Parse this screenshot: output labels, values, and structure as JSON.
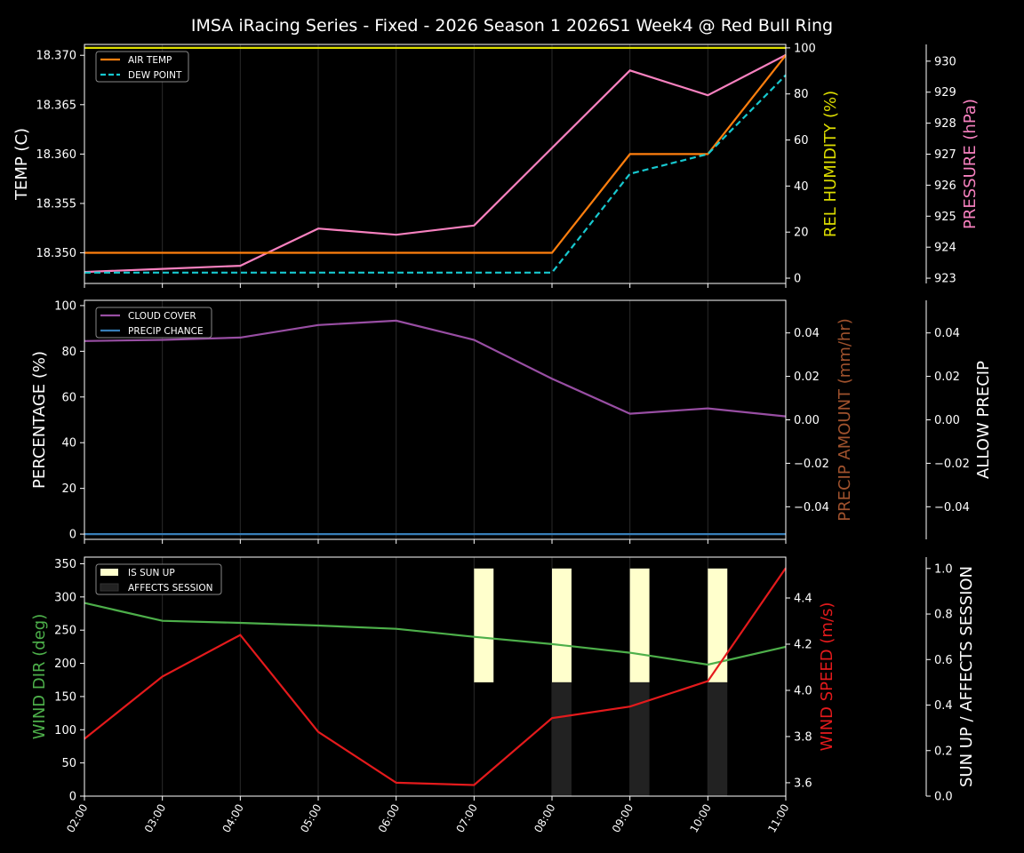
{
  "chart_data": {
    "type": "line",
    "title": "IMSA iRacing Series - Fixed - 2026 Season 1 2026S1 Week4 @ Red Bull Ring",
    "x": [
      "02:00",
      "03:00",
      "04:00",
      "05:00",
      "06:00",
      "07:00",
      "08:00",
      "09:00",
      "10:00",
      "11:00"
    ],
    "grid": "vertical",
    "panels": [
      {
        "axes": [
          {
            "id": "temp",
            "position": "left",
            "label": "TEMP (C)",
            "label_color": "#ffffff",
            "ylim": [
              18.3469,
              18.3711
            ],
            "ticks": [
              18.35,
              18.355,
              18.36,
              18.365,
              18.37
            ],
            "tick_labels": [
              "18.350",
              "18.355",
              "18.360",
              "18.365",
              "18.370"
            ]
          },
          {
            "id": "hum",
            "position": "right",
            "label": "REL HUMIDITY (%)",
            "label_color": "#dddd00",
            "ylim": [
              -2.3,
              101.5
            ],
            "ticks": [
              0,
              20,
              40,
              60,
              80,
              100
            ],
            "tick_labels": [
              "0",
              "20",
              "40",
              "60",
              "80",
              "100"
            ]
          },
          {
            "id": "pres",
            "position": "far-right",
            "label": "PRESSURE (hPa)",
            "label_color": "#f781bf",
            "ylim": [
              922.83,
              930.54
            ],
            "ticks": [
              923,
              924,
              925,
              926,
              927,
              928,
              929,
              930
            ],
            "tick_labels": [
              "923",
              "924",
              "925",
              "926",
              "927",
              "928",
              "929",
              "930"
            ]
          }
        ],
        "series": [
          {
            "name": "REL HUMIDITY",
            "axis": "hum",
            "color": "#dddd00",
            "style": "solid",
            "values": [
              100,
              100,
              100,
              100,
              100,
              100,
              100,
              100,
              100,
              100
            ]
          },
          {
            "name": "PRESSURE",
            "axis": "pres",
            "color": "#f781bf",
            "style": "solid",
            "values": [
              923.2,
              923.3,
              923.4,
              924.6,
              924.4,
              924.7,
              927.2,
              929.7,
              928.9,
              930.2
            ]
          },
          {
            "name": "AIR TEMP",
            "axis": "temp",
            "color": "#ff7f0e",
            "style": "solid",
            "values": [
              18.35,
              18.35,
              18.35,
              18.35,
              18.35,
              18.35,
              18.35,
              18.36,
              18.36,
              18.37
            ]
          },
          {
            "name": "DEW POINT",
            "axis": "temp",
            "color": "#17c8cf",
            "style": "dashed",
            "values": [
              18.348,
              18.348,
              18.348,
              18.348,
              18.348,
              18.348,
              18.348,
              18.358,
              18.36,
              18.368
            ]
          }
        ],
        "legend": {
          "placement": "top-left",
          "entries": [
            {
              "label": "AIR TEMP",
              "color": "#ff7f0e",
              "style": "solid"
            },
            {
              "label": "DEW POINT",
              "color": "#17c8cf",
              "style": "dashed"
            }
          ]
        }
      },
      {
        "axes": [
          {
            "id": "pct",
            "position": "left",
            "label": "PERCENTAGE (%)",
            "label_color": "#ffffff",
            "ylim": [
              -2.3,
              102.3
            ],
            "ticks": [
              0,
              20,
              40,
              60,
              80,
              100
            ],
            "tick_labels": [
              "0",
              "20",
              "40",
              "60",
              "80",
              "100"
            ]
          },
          {
            "id": "pamt",
            "position": "right",
            "label": "PRECIP AMOUNT (mm/hr)",
            "label_color": "#a0522d",
            "ylim": [
              -0.055,
              0.055
            ],
            "ticks": [
              -0.04,
              -0.02,
              0,
              0.02,
              0.04
            ],
            "tick_labels": [
              "−0.04",
              "−0.02",
              "0.00",
              "0.02",
              "0.04"
            ]
          },
          {
            "id": "allow",
            "position": "far-right",
            "label": "ALLOW PRECIP",
            "label_color": "#ffffff",
            "ylim": [
              -0.055,
              0.055
            ],
            "ticks": [
              -0.04,
              -0.02,
              0,
              0.02,
              0.04
            ],
            "tick_labels": [
              "−0.04",
              "−0.02",
              "0.00",
              "0.02",
              "0.04"
            ]
          }
        ],
        "series": [
          {
            "name": "CLOUD COVER",
            "axis": "pct",
            "color": "#984ea3",
            "style": "solid",
            "values": [
              84.5,
              85,
              86,
              91.5,
              93.4,
              85,
              68,
              52.7,
              55,
              51.5
            ]
          },
          {
            "name": "PRECIP CHANCE",
            "axis": "pct",
            "color": "#377eb8",
            "style": "solid",
            "values": [
              0,
              0,
              0,
              0,
              0,
              0,
              0,
              0,
              0,
              0
            ]
          }
        ],
        "legend": {
          "placement": "top-left",
          "entries": [
            {
              "label": "CLOUD COVER",
              "color": "#984ea3",
              "style": "solid"
            },
            {
              "label": "PRECIP CHANCE",
              "color": "#377eb8",
              "style": "solid"
            }
          ]
        }
      },
      {
        "axes": [
          {
            "id": "wdir",
            "position": "left",
            "label": "WIND DIR (deg)",
            "label_color": "#4daf4a",
            "ylim": [
              0,
              360
            ],
            "ticks": [
              0,
              50,
              100,
              150,
              200,
              250,
              300,
              350
            ],
            "tick_labels": [
              "0",
              "50",
              "100",
              "150",
              "200",
              "250",
              "300",
              "350"
            ]
          },
          {
            "id": "wspd",
            "position": "right",
            "label": "WIND SPEED (m/s)",
            "label_color": "#e41a1c",
            "ylim": [
              3.542,
              4.577
            ],
            "ticks": [
              3.6,
              3.8,
              4.0,
              4.2,
              4.4
            ],
            "tick_labels": [
              "3.6",
              "3.8",
              "4.0",
              "4.2",
              "4.4"
            ]
          },
          {
            "id": "sun",
            "position": "far-right",
            "label": "SUN UP / AFFECTS SESSION",
            "label_color": "#ffffff",
            "ylim": [
              0,
              1.05
            ],
            "ticks": [
              0,
              0.2,
              0.4,
              0.6,
              0.8,
              1.0
            ],
            "tick_labels": [
              "0.0",
              "0.2",
              "0.4",
              "0.6",
              "0.8",
              "1.0"
            ]
          }
        ],
        "bars": [
          {
            "name": "IS SUN UP",
            "axis": "sun",
            "color": "#ffffcc",
            "base": 0.5,
            "height": 0.5,
            "values": [
              0,
              0,
              0,
              0,
              0,
              1,
              1,
              1,
              1,
              0
            ]
          },
          {
            "name": "AFFECTS SESSION",
            "axis": "sun",
            "color": "#222222",
            "base": 0,
            "height": 0.5,
            "values": [
              0,
              0,
              0,
              0,
              0,
              0,
              1,
              1,
              1,
              0
            ]
          }
        ],
        "series": [
          {
            "name": "WIND DIR",
            "axis": "wdir",
            "color": "#4daf4a",
            "style": "solid",
            "values": [
              291,
              264,
              261,
              257,
              252,
              240,
              229,
              216,
              198,
              225
            ]
          },
          {
            "name": "WIND SPEED",
            "axis": "wspd",
            "color": "#e41a1c",
            "style": "solid",
            "values": [
              3.79,
              4.06,
              4.24,
              3.82,
              3.6,
              3.59,
              3.88,
              3.93,
              4.04,
              4.53
            ]
          }
        ],
        "legend": {
          "placement": "top-left",
          "entries": [
            {
              "label": "IS SUN UP",
              "color": "#ffffcc",
              "style": "box"
            },
            {
              "label": "AFFECTS SESSION",
              "color": "#222222",
              "style": "box"
            }
          ]
        }
      }
    ]
  }
}
